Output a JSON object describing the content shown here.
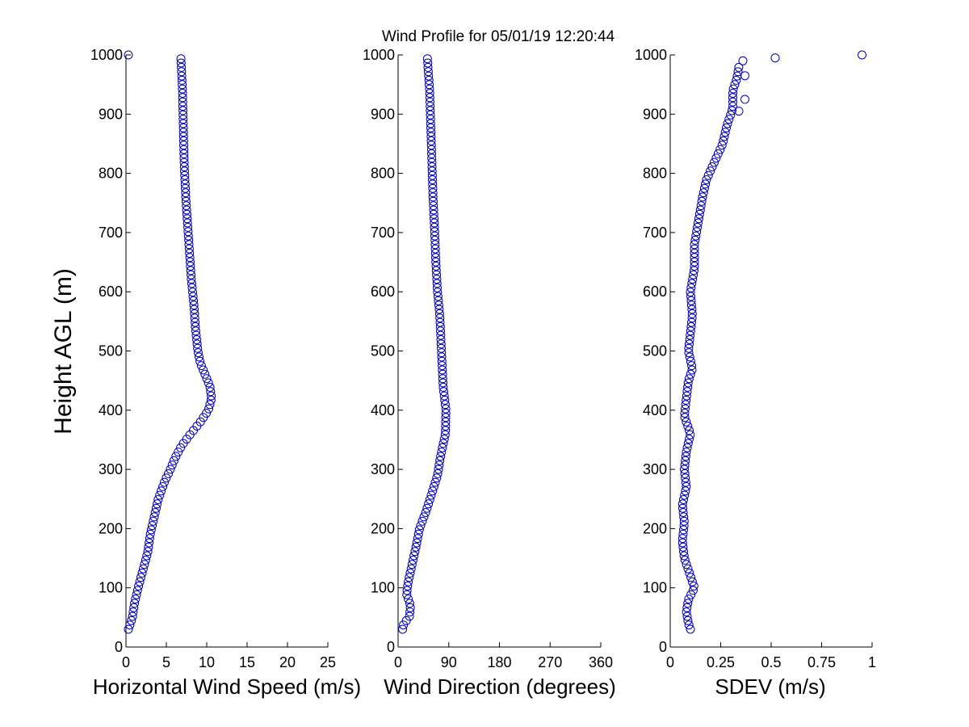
{
  "title": "Wind Profile for  05/01/19 12:20:44",
  "marker_color": "#0000b3",
  "ylabel": "Height AGL (m)",
  "chart_data": [
    {
      "type": "scatter",
      "xlabel": "Horizontal Wind Speed (m/s)",
      "ylabel": "Height AGL (m)",
      "xlim": [
        0,
        25
      ],
      "ylim": [
        0,
        1000
      ],
      "xticks": [
        "0",
        "5",
        "10",
        "15",
        "20",
        "25"
      ],
      "yticks": [
        "0",
        "100",
        "200",
        "300",
        "400",
        "500",
        "600",
        "700",
        "800",
        "900",
        "1000"
      ],
      "grid": false,
      "profile": [
        [
          30,
          0.3
        ],
        [
          50,
          0.8
        ],
        [
          70,
          1.0
        ],
        [
          100,
          1.5
        ],
        [
          130,
          2.1
        ],
        [
          160,
          2.7
        ],
        [
          190,
          3.0
        ],
        [
          220,
          3.5
        ],
        [
          250,
          4.0
        ],
        [
          280,
          4.8
        ],
        [
          300,
          5.5
        ],
        [
          320,
          6.1
        ],
        [
          340,
          6.9
        ],
        [
          360,
          8.0
        ],
        [
          380,
          9.2
        ],
        [
          400,
          10.2
        ],
        [
          420,
          10.6
        ],
        [
          440,
          10.4
        ],
        [
          460,
          9.8
        ],
        [
          480,
          9.2
        ],
        [
          500,
          8.9
        ],
        [
          540,
          8.6
        ],
        [
          580,
          8.4
        ],
        [
          620,
          8.1
        ],
        [
          660,
          7.9
        ],
        [
          700,
          7.7
        ],
        [
          760,
          7.4
        ],
        [
          820,
          7.2
        ],
        [
          880,
          7.1
        ],
        [
          940,
          7.0
        ],
        [
          995,
          6.8
        ]
      ],
      "outliers": [
        [
          1000,
          0.3
        ]
      ]
    },
    {
      "type": "scatter",
      "xlabel": "Wind Direction (degrees)",
      "xlim": [
        0,
        360
      ],
      "xticks": [
        "0",
        "90",
        "180",
        "270",
        "360"
      ],
      "ylim": [
        0,
        1000
      ],
      "grid": false,
      "profile": [
        [
          30,
          8
        ],
        [
          40,
          10
        ],
        [
          50,
          20
        ],
        [
          70,
          22
        ],
        [
          90,
          15
        ],
        [
          110,
          18
        ],
        [
          140,
          25
        ],
        [
          170,
          32
        ],
        [
          200,
          38
        ],
        [
          230,
          50
        ],
        [
          260,
          60
        ],
        [
          290,
          70
        ],
        [
          320,
          75
        ],
        [
          360,
          84
        ],
        [
          400,
          85
        ],
        [
          440,
          80
        ],
        [
          480,
          78
        ],
        [
          520,
          76
        ],
        [
          560,
          74
        ],
        [
          600,
          70
        ],
        [
          650,
          67
        ],
        [
          700,
          65
        ],
        [
          760,
          62
        ],
        [
          820,
          60
        ],
        [
          880,
          58
        ],
        [
          940,
          56
        ],
        [
          980,
          53
        ],
        [
          995,
          52
        ]
      ],
      "outliers": []
    },
    {
      "type": "scatter",
      "xlabel": "SDEV  (m/s)",
      "xlim": [
        0,
        1
      ],
      "xticks": [
        "0",
        "0.25",
        "0.5",
        "0.75",
        "1"
      ],
      "ylim": [
        0,
        1000
      ],
      "grid": false,
      "profile": [
        [
          30,
          0.1
        ],
        [
          40,
          0.09
        ],
        [
          60,
          0.08
        ],
        [
          80,
          0.09
        ],
        [
          100,
          0.12
        ],
        [
          120,
          0.1
        ],
        [
          150,
          0.07
        ],
        [
          180,
          0.06
        ],
        [
          210,
          0.07
        ],
        [
          240,
          0.06
        ],
        [
          270,
          0.08
        ],
        [
          300,
          0.07
        ],
        [
          330,
          0.08
        ],
        [
          360,
          0.1
        ],
        [
          390,
          0.07
        ],
        [
          420,
          0.08
        ],
        [
          450,
          0.09
        ],
        [
          470,
          0.11
        ],
        [
          500,
          0.09
        ],
        [
          530,
          0.1
        ],
        [
          560,
          0.11
        ],
        [
          600,
          0.1
        ],
        [
          640,
          0.12
        ],
        [
          680,
          0.12
        ],
        [
          720,
          0.14
        ],
        [
          760,
          0.16
        ],
        [
          790,
          0.18
        ],
        [
          820,
          0.22
        ],
        [
          850,
          0.26
        ],
        [
          880,
          0.28
        ],
        [
          910,
          0.31
        ],
        [
          940,
          0.31
        ],
        [
          960,
          0.33
        ],
        [
          980,
          0.34
        ]
      ],
      "outliers": [
        [
          905,
          0.34
        ],
        [
          925,
          0.37
        ],
        [
          965,
          0.37
        ],
        [
          990,
          0.36
        ],
        [
          995,
          0.52
        ],
        [
          1000,
          0.95
        ]
      ]
    }
  ]
}
